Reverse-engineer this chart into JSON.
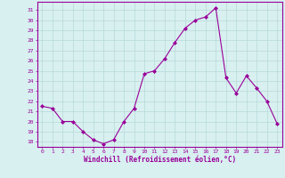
{
  "x": [
    0,
    1,
    2,
    3,
    4,
    5,
    6,
    7,
    8,
    9,
    10,
    11,
    12,
    13,
    14,
    15,
    16,
    17,
    18,
    19,
    20,
    21,
    22,
    23
  ],
  "y": [
    21.5,
    21.3,
    20.0,
    20.0,
    19.0,
    18.2,
    17.8,
    18.2,
    20.0,
    21.3,
    24.7,
    25.0,
    26.2,
    27.8,
    29.2,
    30.0,
    30.3,
    31.2,
    24.3,
    22.8,
    24.5,
    23.3,
    22.0,
    19.8
  ],
  "line_color": "#990099",
  "marker": "D",
  "marker_size": 2,
  "bg_color": "#d8f0f0",
  "grid_color": "#b8d8d8",
  "xlabel": "Windchill (Refroidissement éolien,°C)",
  "ylim": [
    17.5,
    31.8
  ],
  "xlim": [
    -0.5,
    23.5
  ],
  "yticks": [
    18,
    19,
    20,
    21,
    22,
    23,
    24,
    25,
    26,
    27,
    28,
    29,
    30,
    31
  ],
  "xticks": [
    0,
    1,
    2,
    3,
    4,
    5,
    6,
    7,
    8,
    9,
    10,
    11,
    12,
    13,
    14,
    15,
    16,
    17,
    18,
    19,
    20,
    21,
    22,
    23
  ],
  "tick_color": "#990099",
  "label_color": "#990099",
  "spine_color": "#990099"
}
